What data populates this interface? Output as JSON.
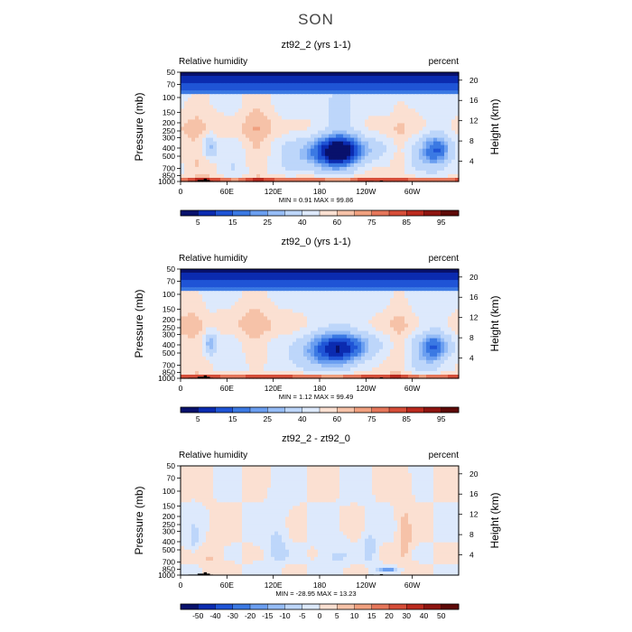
{
  "page": {
    "title": "SON"
  },
  "chart_data": [
    {
      "type": "heatmap",
      "title": "zt92_2 (yrs 1-1)",
      "left_label": "Relative humidity",
      "right_label": "percent",
      "ylabel": "Pressure (mb)",
      "y2label": "Height (km)",
      "xticks": [
        "0",
        "60E",
        "120E",
        "180",
        "120W",
        "60W"
      ],
      "yticks": [
        "1000",
        "850",
        "700",
        "500",
        "400",
        "300",
        "250",
        "200",
        "150",
        "100",
        "70",
        "50"
      ],
      "y2ticks": [
        "4",
        "8",
        "12",
        "16",
        "20"
      ],
      "min_text": "MIN =   0.91",
      "max_text": "MAX =   99.86",
      "colorbar": {
        "colors": [
          "#08116c",
          "#0b2bb0",
          "#1f54d6",
          "#3b79e3",
          "#6a9ef0",
          "#95bcf6",
          "#bdd6fa",
          "#dde9fc",
          "#fbe0d2",
          "#f6c2a8",
          "#f0a07f",
          "#e5765a",
          "#d64d38",
          "#bb2a1e",
          "#8e1410",
          "#5e0a08"
        ],
        "labels": [
          "5",
          "15",
          "25",
          "40",
          "60",
          "75",
          "85",
          "95"
        ]
      },
      "field": "rh"
    },
    {
      "type": "heatmap",
      "title": "zt92_0 (yrs 1-1)",
      "left_label": "Relative humidity",
      "right_label": "percent",
      "ylabel": "Pressure (mb)",
      "y2label": "Height (km)",
      "xticks": [
        "0",
        "60E",
        "120E",
        "180",
        "120W",
        "60W"
      ],
      "yticks": [
        "1000",
        "850",
        "700",
        "500",
        "400",
        "300",
        "250",
        "200",
        "150",
        "100",
        "70",
        "50"
      ],
      "y2ticks": [
        "4",
        "8",
        "12",
        "16",
        "20"
      ],
      "min_text": "MIN =   1.12",
      "max_text": "MAX =   99.49",
      "colorbar": {
        "colors": [
          "#08116c",
          "#0b2bb0",
          "#1f54d6",
          "#3b79e3",
          "#6a9ef0",
          "#95bcf6",
          "#bdd6fa",
          "#dde9fc",
          "#fbe0d2",
          "#f6c2a8",
          "#f0a07f",
          "#e5765a",
          "#d64d38",
          "#bb2a1e",
          "#8e1410",
          "#5e0a08"
        ],
        "labels": [
          "5",
          "15",
          "25",
          "40",
          "60",
          "75",
          "85",
          "95"
        ]
      },
      "field": "rh2"
    },
    {
      "type": "heatmap",
      "title": "zt92_2 - zt92_0",
      "left_label": "Relative humidity",
      "right_label": "percent",
      "ylabel": "Pressure (mb)",
      "y2label": "Height (km)",
      "xticks": [
        "0",
        "60E",
        "120E",
        "180",
        "120W",
        "60W"
      ],
      "yticks": [
        "1000",
        "850",
        "700",
        "500",
        "400",
        "300",
        "250",
        "200",
        "150",
        "100",
        "70",
        "50"
      ],
      "y2ticks": [
        "4",
        "8",
        "12",
        "16",
        "20"
      ],
      "min_text": "MIN =  -28.95",
      "max_text": "MAX =   13.23",
      "colorbar": {
        "colors": [
          "#08116c",
          "#0b2bb0",
          "#1f54d6",
          "#3b79e3",
          "#6a9ef0",
          "#95bcf6",
          "#bdd6fa",
          "#dde9fc",
          "#fbe0d2",
          "#f6c2a8",
          "#f0a07f",
          "#e5765a",
          "#d64d38",
          "#bb2a1e",
          "#8e1410",
          "#5e0a08"
        ],
        "labels": [
          "-50",
          "-40",
          "-30",
          "-20",
          "-15",
          "-10",
          "-5",
          "0",
          "5",
          "10",
          "15",
          "20",
          "30",
          "40",
          "50"
        ]
      },
      "field": "diff"
    }
  ]
}
